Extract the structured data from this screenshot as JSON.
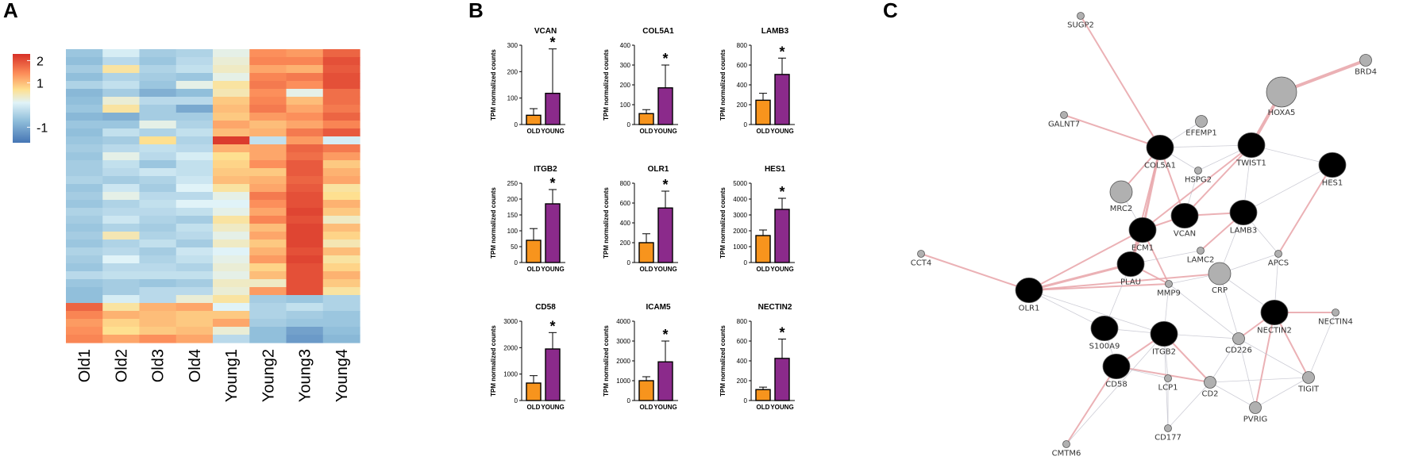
{
  "panels": {
    "a": "A",
    "b": "B",
    "c": "C"
  },
  "colors": {
    "old": "#f7941d",
    "young": "#8b2a8b",
    "hm_low": "#4575b4",
    "hm_mid": "#e0f3f8",
    "hm_mid2": "#fee090",
    "hm_high": "#d73027",
    "node_dark": "#000000",
    "node_grey": "#b0b0b0",
    "edge_pink": "#e8a3a8",
    "edge_grey": "#bcbcc8"
  },
  "chart_data": [
    {
      "type": "heatmap",
      "panel": "A",
      "columns": [
        "Old1",
        "Old2",
        "Old3",
        "Old4",
        "Young1",
        "Young2",
        "Young3",
        "Young4"
      ],
      "legend_ticks": [
        "2",
        "1",
        "-1"
      ],
      "legend_tick_values": [
        2,
        1,
        -1
      ],
      "color_range": [
        -1.7,
        2.3
      ],
      "values": [
        [
          -0.6,
          0.0,
          -0.5,
          -0.4,
          0.2,
          1.4,
          1.3,
          1.8
        ],
        [
          -0.7,
          -0.3,
          -0.6,
          -0.3,
          0.3,
          1.5,
          1.5,
          2.0
        ],
        [
          -0.5,
          0.6,
          -0.4,
          -0.2,
          0.4,
          1.2,
          1.1,
          1.9
        ],
        [
          -0.7,
          -0.4,
          -0.5,
          -0.6,
          0.2,
          1.5,
          1.6,
          2.0
        ],
        [
          -0.4,
          -0.2,
          -0.6,
          0.2,
          0.6,
          1.6,
          1.4,
          2.0
        ],
        [
          -0.8,
          -0.5,
          -0.9,
          -0.7,
          0.5,
          1.4,
          0.2,
          1.7
        ],
        [
          -0.7,
          0.3,
          -0.3,
          -0.3,
          0.9,
          1.5,
          1.0,
          1.7
        ],
        [
          -0.6,
          0.6,
          -0.5,
          -1.0,
          1.0,
          1.6,
          1.2,
          1.6
        ],
        [
          -0.8,
          -0.9,
          -0.5,
          -0.5,
          0.9,
          1.3,
          1.4,
          1.8
        ],
        [
          -0.6,
          -0.6,
          0.2,
          -0.4,
          1.2,
          1.0,
          1.2,
          1.5
        ],
        [
          -0.7,
          -0.2,
          -0.4,
          -0.2,
          1.0,
          1.1,
          1.6,
          1.9
        ],
        [
          -0.6,
          -0.5,
          0.7,
          -0.4,
          2.2,
          -0.2,
          1.3,
          0.0
        ],
        [
          -0.5,
          -0.3,
          -0.2,
          -0.3,
          1.1,
          1.2,
          1.8,
          1.6
        ],
        [
          -0.6,
          0.2,
          -0.3,
          0.0,
          0.7,
          1.2,
          1.7,
          1.3
        ],
        [
          -0.5,
          -0.2,
          -0.6,
          -0.2,
          0.8,
          1.4,
          1.9,
          0.9
        ],
        [
          -0.5,
          -0.3,
          -0.1,
          -0.2,
          0.9,
          0.9,
          1.9,
          1.1
        ],
        [
          -0.4,
          -0.5,
          -0.4,
          -0.1,
          1.0,
          1.1,
          1.8,
          1.2
        ],
        [
          -0.6,
          -0.1,
          -0.5,
          0.1,
          0.6,
          1.2,
          1.9,
          0.6
        ],
        [
          -0.5,
          0.2,
          -0.3,
          -0.3,
          0.2,
          1.6,
          2.0,
          0.7
        ],
        [
          -0.6,
          -0.4,
          -0.2,
          0.1,
          0.1,
          1.4,
          2.0,
          1.1
        ],
        [
          -0.4,
          -0.3,
          -0.3,
          -0.2,
          0.2,
          1.2,
          2.1,
          0.9
        ],
        [
          -0.5,
          -0.1,
          -0.4,
          -0.5,
          0.6,
          1.5,
          2.0,
          0.4
        ],
        [
          -0.6,
          -0.4,
          -0.5,
          -0.2,
          0.4,
          1.0,
          2.1,
          1.0
        ],
        [
          -0.5,
          0.5,
          -0.4,
          -0.3,
          0.2,
          1.2,
          2.1,
          0.8
        ],
        [
          -0.6,
          -0.4,
          -0.2,
          -0.5,
          0.4,
          0.9,
          2.1,
          0.5
        ],
        [
          -0.4,
          -0.3,
          -0.5,
          -0.1,
          0.1,
          1.1,
          2.0,
          1.0
        ],
        [
          -0.5,
          0.1,
          -0.4,
          -0.2,
          0.2,
          1.3,
          2.1,
          0.6
        ],
        [
          -0.6,
          -0.3,
          -0.3,
          -0.4,
          0.3,
          0.8,
          2.0,
          0.8
        ],
        [
          -0.3,
          -0.2,
          -0.2,
          -0.2,
          0.2,
          1.0,
          2.0,
          1.1
        ],
        [
          -0.6,
          -0.5,
          -0.6,
          -0.5,
          0.4,
          0.4,
          2.0,
          0.9
        ],
        [
          -0.7,
          -0.5,
          -0.3,
          -0.3,
          0.3,
          1.3,
          2.0,
          0.6
        ],
        [
          -0.7,
          0.0,
          -0.3,
          0.3,
          0.6,
          -0.5,
          -0.6,
          -0.4
        ],
        [
          1.8,
          0.6,
          1.1,
          1.2,
          0.1,
          -0.4,
          -0.2,
          -0.4
        ],
        [
          1.5,
          1.1,
          1.0,
          0.9,
          0.9,
          -0.4,
          -0.5,
          -0.6
        ],
        [
          1.3,
          0.8,
          1.0,
          0.9,
          1.2,
          -0.5,
          -0.6,
          -0.6
        ],
        [
          1.4,
          0.7,
          0.9,
          1.0,
          0.3,
          -0.7,
          -1.1,
          -0.7
        ],
        [
          1.5,
          1.2,
          1.4,
          1.2,
          -0.3,
          -0.7,
          -1.2,
          -0.8
        ]
      ]
    },
    {
      "type": "bar",
      "panel": "B",
      "ylabel": "TPM normalized counts",
      "categories": [
        "OLD",
        "YOUNG"
      ],
      "significance": "*",
      "subplots": [
        {
          "title": "VCAN",
          "values": [
            35,
            118
          ],
          "errors": [
            25,
            168
          ],
          "ylim": [
            0,
            300
          ],
          "yticks": [
            0,
            100,
            200,
            300
          ]
        },
        {
          "title": "COL5A1",
          "values": [
            55,
            185
          ],
          "errors": [
            20,
            115
          ],
          "ylim": [
            0,
            400
          ],
          "yticks": [
            0,
            100,
            200,
            300,
            400
          ]
        },
        {
          "title": "LAMB3",
          "values": [
            245,
            505
          ],
          "errors": [
            70,
            165
          ],
          "ylim": [
            0,
            800
          ],
          "yticks": [
            0,
            200,
            400,
            600,
            800
          ]
        },
        {
          "title": "ITGB2",
          "values": [
            70,
            185
          ],
          "errors": [
            37,
            45
          ],
          "ylim": [
            0,
            250
          ],
          "yticks": [
            0,
            50,
            100,
            150,
            200,
            250
          ]
        },
        {
          "title": "OLR1",
          "values": [
            200,
            550
          ],
          "errors": [
            90,
            170
          ],
          "ylim": [
            0,
            800
          ],
          "yticks": [
            0,
            200,
            400,
            600,
            800
          ]
        },
        {
          "title": "HES1",
          "values": [
            1700,
            3350
          ],
          "errors": [
            350,
            700
          ],
          "ylim": [
            0,
            5000
          ],
          "yticks": [
            0,
            1000,
            2000,
            3000,
            4000,
            5000
          ]
        },
        {
          "title": "CD58",
          "values": [
            660,
            1950
          ],
          "errors": [
            280,
            620
          ],
          "ylim": [
            0,
            3000
          ],
          "yticks": [
            0,
            1000,
            2000,
            3000
          ]
        },
        {
          "title": "ICAM5",
          "values": [
            1000,
            1950
          ],
          "errors": [
            200,
            1050
          ],
          "ylim": [
            0,
            4000
          ],
          "yticks": [
            0,
            1000,
            2000,
            3000,
            4000
          ]
        },
        {
          "title": "NECTIN2",
          "values": [
            110,
            425
          ],
          "errors": [
            25,
            195
          ],
          "ylim": [
            0,
            800
          ],
          "yticks": [
            0,
            200,
            400,
            600,
            800
          ]
        }
      ]
    }
  ],
  "network": {
    "nodes": [
      {
        "label": "SUGP2",
        "type": "grey",
        "size": "s"
      },
      {
        "label": "BRD4",
        "type": "grey",
        "size": "m"
      },
      {
        "label": "HOXA5",
        "type": "grey",
        "size": "l"
      },
      {
        "label": "GALNT7",
        "type": "grey",
        "size": "s"
      },
      {
        "label": "EFEMP1",
        "type": "grey",
        "size": "m"
      },
      {
        "label": "COL5A1",
        "type": "dark",
        "size": "l"
      },
      {
        "label": "TWIST1",
        "type": "dark",
        "size": "l"
      },
      {
        "label": "HES1",
        "type": "dark",
        "size": "l"
      },
      {
        "label": "HSPG2",
        "type": "grey",
        "size": "s"
      },
      {
        "label": "MRC2",
        "type": "grey",
        "size": "l"
      },
      {
        "label": "ECM1",
        "type": "dark",
        "size": "l"
      },
      {
        "label": "VCAN",
        "type": "dark",
        "size": "l"
      },
      {
        "label": "LAMB3",
        "type": "dark",
        "size": "l"
      },
      {
        "label": "LAMC2",
        "type": "grey",
        "size": "s"
      },
      {
        "label": "APCS",
        "type": "grey",
        "size": "s"
      },
      {
        "label": "CCT4",
        "type": "grey",
        "size": "s"
      },
      {
        "label": "PLAU",
        "type": "dark",
        "size": "l"
      },
      {
        "label": "MMP9",
        "type": "grey",
        "size": "s"
      },
      {
        "label": "CRP",
        "type": "grey",
        "size": "l"
      },
      {
        "label": "OLR1",
        "type": "dark",
        "size": "l"
      },
      {
        "label": "NECTIN2",
        "type": "dark",
        "size": "l"
      },
      {
        "label": "NECTIN4",
        "type": "grey",
        "size": "s"
      },
      {
        "label": "S100A9",
        "type": "dark",
        "size": "l"
      },
      {
        "label": "ITGB2",
        "type": "dark",
        "size": "l"
      },
      {
        "label": "CD226",
        "type": "grey",
        "size": "m"
      },
      {
        "label": "CD58",
        "type": "dark",
        "size": "l"
      },
      {
        "label": "LCP1",
        "type": "grey",
        "size": "s"
      },
      {
        "label": "CD2",
        "type": "grey",
        "size": "m"
      },
      {
        "label": "TIGIT",
        "type": "grey",
        "size": "m"
      },
      {
        "label": "PVRIG",
        "type": "grey",
        "size": "m"
      },
      {
        "label": "CD177",
        "type": "grey",
        "size": "s"
      },
      {
        "label": "CMTM6",
        "type": "grey",
        "size": "s"
      }
    ],
    "edges": [
      [
        "COL5A1",
        "SUGP2",
        "pink",
        2
      ],
      [
        "HOXA5",
        "BRD4",
        "pink",
        4
      ],
      [
        "TWIST1",
        "HOXA5",
        "pink",
        4
      ],
      [
        "COL5A1",
        "GALNT7",
        "pink",
        2
      ],
      [
        "COL5A1",
        "EFEMP1",
        "grey",
        1
      ],
      [
        "COL5A1",
        "HSPG2",
        "grey",
        1
      ],
      [
        "COL5A1",
        "MRC2",
        "pink",
        2
      ],
      [
        "COL5A1",
        "ECM1",
        "pink",
        3
      ],
      [
        "COL5A1",
        "VCAN",
        "pink",
        2
      ],
      [
        "COL5A1",
        "PLAU",
        "pink",
        2
      ],
      [
        "COL5A1",
        "TWIST1",
        "grey",
        1
      ],
      [
        "TWIST1",
        "VCAN",
        "pink",
        2
      ],
      [
        "TWIST1",
        "ECM1",
        "pink",
        2
      ],
      [
        "TWIST1",
        "LAMB3",
        "grey",
        1
      ],
      [
        "TWIST1",
        "HES1",
        "grey",
        1
      ],
      [
        "TWIST1",
        "HSPG2",
        "grey",
        1
      ],
      [
        "HES1",
        "APCS",
        "pink",
        2
      ],
      [
        "HES1",
        "LAMB3",
        "grey",
        1
      ],
      [
        "ECM1",
        "MRC2",
        "grey",
        1
      ],
      [
        "ECM1",
        "VCAN",
        "pink",
        2
      ],
      [
        "ECM1",
        "PLAU",
        "pink",
        3
      ],
      [
        "ECM1",
        "MMP9",
        "pink",
        2
      ],
      [
        "VCAN",
        "LAMB3",
        "pink",
        2
      ],
      [
        "VCAN",
        "HSPG2",
        "grey",
        1
      ],
      [
        "LAMB3",
        "LAMC2",
        "pink",
        2
      ],
      [
        "LAMB3",
        "CRP",
        "grey",
        1
      ],
      [
        "LAMB3",
        "APCS",
        "grey",
        1
      ],
      [
        "LAMC2",
        "PLAU",
        "grey",
        1
      ],
      [
        "APCS",
        "CRP",
        "grey",
        1
      ],
      [
        "APCS",
        "NECTIN2",
        "grey",
        1
      ],
      [
        "CCT4",
        "OLR1",
        "pink",
        2
      ],
      [
        "OLR1",
        "PLAU",
        "pink",
        3
      ],
      [
        "OLR1",
        "MMP9",
        "pink",
        2
      ],
      [
        "OLR1",
        "CRP",
        "pink",
        2
      ],
      [
        "OLR1",
        "ECM1",
        "pink",
        2
      ],
      [
        "OLR1",
        "S100A9",
        "grey",
        1
      ],
      [
        "OLR1",
        "ITGB2",
        "grey",
        1
      ],
      [
        "PLAU",
        "MMP9",
        "pink",
        2
      ],
      [
        "PLAU",
        "S100A9",
        "grey",
        1
      ],
      [
        "MMP9",
        "CRP",
        "grey",
        1
      ],
      [
        "MMP9",
        "ITGB2",
        "grey",
        1
      ],
      [
        "MMP9",
        "CD226",
        "grey",
        1
      ],
      [
        "CRP",
        "CD226",
        "grey",
        1
      ],
      [
        "CRP",
        "NECTIN2",
        "grey",
        1
      ],
      [
        "S100A9",
        "ITGB2",
        "grey",
        1
      ],
      [
        "S100A9",
        "CD58",
        "grey",
        1
      ],
      [
        "ITGB2",
        "CD58",
        "pink",
        2
      ],
      [
        "ITGB2",
        "CD2",
        "pink",
        2
      ],
      [
        "ITGB2",
        "LCP1",
        "grey",
        1
      ],
      [
        "ITGB2",
        "CD177",
        "grey",
        1
      ],
      [
        "ITGB2",
        "CD226",
        "grey",
        1
      ],
      [
        "CD58",
        "CD2",
        "pink",
        2
      ],
      [
        "CD58",
        "CMTM6",
        "pink",
        2
      ],
      [
        "CD58",
        "LCP1",
        "grey",
        1
      ],
      [
        "CD2",
        "CD226",
        "grey",
        1
      ],
      [
        "CD2",
        "PVRIG",
        "grey",
        1
      ],
      [
        "CD2",
        "TIGIT",
        "grey",
        1
      ],
      [
        "NECTIN2",
        "NECTIN4",
        "pink",
        2
      ],
      [
        "NECTIN2",
        "TIGIT",
        "pink",
        2
      ],
      [
        "NECTIN2",
        "PVRIG",
        "pink",
        2
      ],
      [
        "NECTIN2",
        "CD226",
        "pink",
        2
      ],
      [
        "NECTIN4",
        "TIGIT",
        "grey",
        1
      ],
      [
        "CD226",
        "TIGIT",
        "grey",
        1
      ],
      [
        "CD226",
        "PVRIG",
        "grey",
        1
      ],
      [
        "LCP1",
        "CD177",
        "grey",
        1
      ],
      [
        "CD177",
        "CD2",
        "grey",
        1
      ],
      [
        "CMTM6",
        "ITGB2",
        "grey",
        1
      ],
      [
        "PVRIG",
        "TIGIT",
        "grey",
        1
      ]
    ]
  }
}
